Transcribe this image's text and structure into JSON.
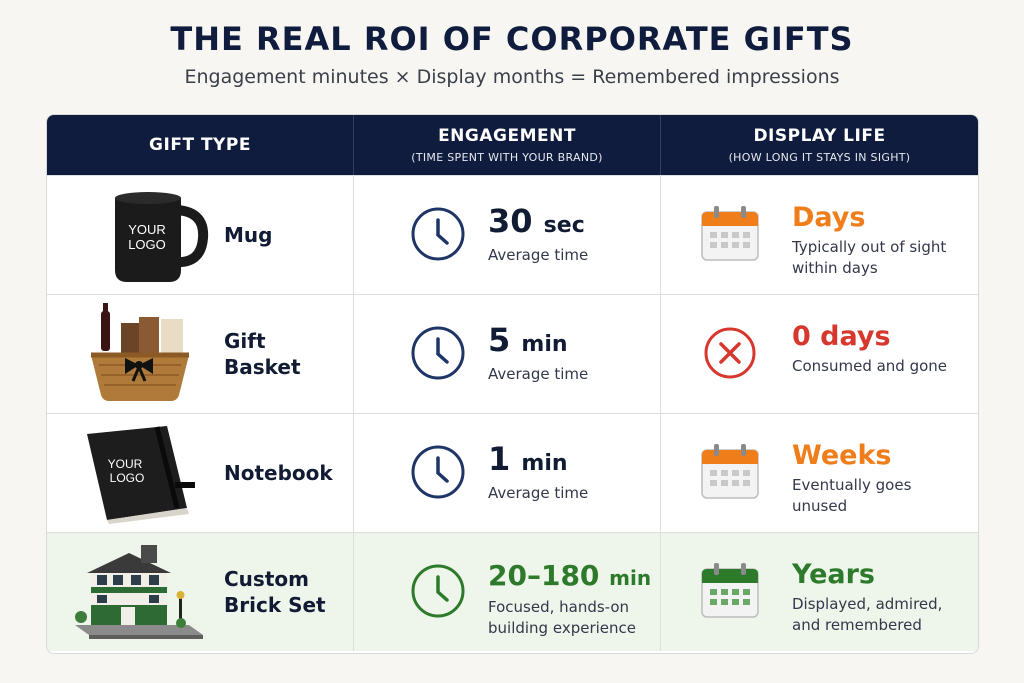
{
  "title": "THE REAL ROI OF CORPORATE GIFTS",
  "subtitle": "Engagement minutes × Display months = Remembered impressions",
  "headers": {
    "gift_type": "GIFT TYPE",
    "engagement": "ENGAGEMENT",
    "engagement_sub": "(TIME SPENT WITH YOUR BRAND)",
    "display_life": "DISPLAY LIFE",
    "display_life_sub": "(HOW LONG IT STAYS IN SIGHT)"
  },
  "logo_text": "YOUR LOGO",
  "rows": [
    {
      "name": "Mug",
      "engagement_value": "30",
      "engagement_unit": "sec",
      "engagement_desc": "Average time",
      "display_value": "Days",
      "display_desc": "Typically out of sight within days",
      "display_icon": "calendar-icon",
      "accent": "#ef7d1a"
    },
    {
      "name": "Gift Basket",
      "engagement_value": "5",
      "engagement_unit": "min",
      "engagement_desc": "Average time",
      "display_value": "0 days",
      "display_desc": "Consumed and gone",
      "display_icon": "x-circle-icon",
      "accent": "#d7372c"
    },
    {
      "name": "Notebook",
      "engagement_value": "1",
      "engagement_unit": "min",
      "engagement_desc": "Average time",
      "display_value": "Weeks",
      "display_desc": "Eventually goes unused",
      "display_icon": "calendar-icon",
      "accent": "#ef7d1a"
    },
    {
      "name": "Custom Brick Set",
      "engagement_value": "20–180",
      "engagement_unit": "min",
      "engagement_desc": "Focused, hands-on building experience",
      "display_value": "Years",
      "display_desc": "Displayed, admired, and remembered",
      "display_icon": "calendar-icon",
      "accent": "#2c7a2a"
    }
  ],
  "colors": {
    "header_bg": "#0f1c3d",
    "clock": "#1f3566",
    "highlight_bg": "#eef5ea"
  }
}
